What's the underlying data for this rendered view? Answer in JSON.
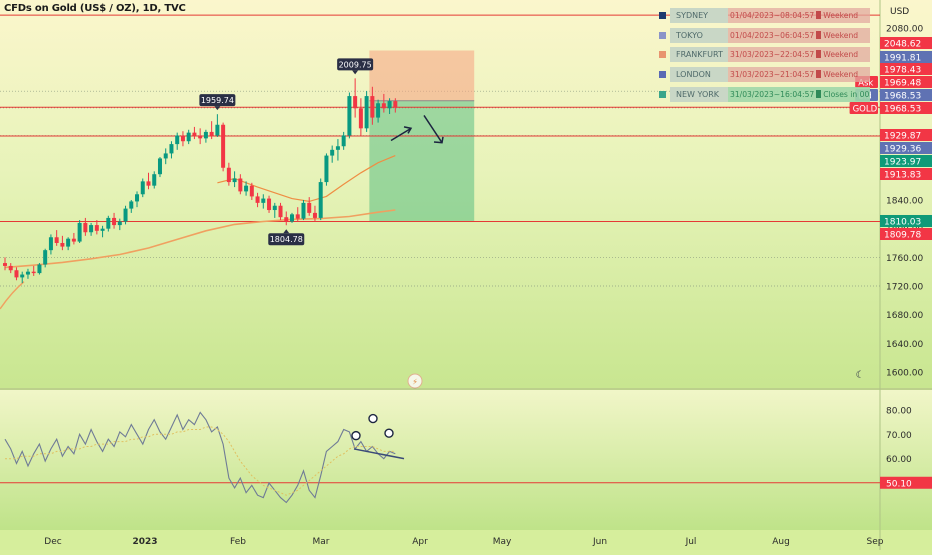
{
  "header": {
    "title": "CFDs on Gold (US$ / OZ), 1D, TVC",
    "currency": "USD"
  },
  "sessions": [
    {
      "name": "SYDNEY",
      "color": "#1f3a6e",
      "info": "01/04/2023~08:04:57",
      "status": "Weekend",
      "open": false
    },
    {
      "name": "TOKYO",
      "color": "#8b94c8",
      "info": "01/04/2023~06:04:57",
      "status": "Weekend",
      "open": false
    },
    {
      "name": "FRANKFURT",
      "color": "#e8946f",
      "info": "31/03/2023~22:04:57",
      "status": "Weekend",
      "open": false
    },
    {
      "name": "LONDON",
      "color": "#5a6ab4",
      "info": "31/03/2023~21:04:57",
      "status": "Weekend",
      "open": false
    },
    {
      "name": "NEW YORK",
      "color": "#3aa58a",
      "info": "31/03/2023~16:04:57",
      "status": "Closes in 00:55",
      "open": true
    }
  ],
  "chart_data": [
    {
      "type": "candlestick",
      "title": "CFDs on Gold (US$ / OZ), 1D, TVC",
      "ylim": [
        1575,
        2100
      ],
      "y_ticks": [
        2080.0,
        1840.0,
        1800.0,
        1760.0,
        1720.0,
        1680.0,
        1640.0,
        1600.0
      ],
      "x_ticks": [
        "Dec",
        "2023",
        "Feb",
        "Mar",
        "Apr",
        "May",
        "Jun",
        "Jul",
        "Aug",
        "Sep"
      ],
      "ohlc": [
        [
          1752,
          1760,
          1742,
          1748
        ],
        [
          1748,
          1752,
          1738,
          1742
        ],
        [
          1742,
          1746,
          1728,
          1732
        ],
        [
          1732,
          1740,
          1724,
          1736
        ],
        [
          1736,
          1744,
          1730,
          1740
        ],
        [
          1740,
          1748,
          1734,
          1738
        ],
        [
          1738,
          1752,
          1736,
          1750
        ],
        [
          1750,
          1772,
          1746,
          1770
        ],
        [
          1770,
          1792,
          1764,
          1788
        ],
        [
          1788,
          1798,
          1776,
          1780
        ],
        [
          1780,
          1790,
          1770,
          1775
        ],
        [
          1775,
          1788,
          1770,
          1786
        ],
        [
          1786,
          1794,
          1778,
          1782
        ],
        [
          1782,
          1812,
          1780,
          1808
        ],
        [
          1808,
          1815,
          1790,
          1795
        ],
        [
          1795,
          1808,
          1790,
          1805
        ],
        [
          1805,
          1812,
          1792,
          1797
        ],
        [
          1797,
          1804,
          1788,
          1800
        ],
        [
          1800,
          1818,
          1796,
          1815
        ],
        [
          1815,
          1822,
          1800,
          1805
        ],
        [
          1805,
          1814,
          1798,
          1810
        ],
        [
          1810,
          1832,
          1806,
          1828
        ],
        [
          1828,
          1840,
          1822,
          1838
        ],
        [
          1838,
          1852,
          1830,
          1848
        ],
        [
          1848,
          1870,
          1844,
          1866
        ],
        [
          1866,
          1878,
          1855,
          1860
        ],
        [
          1860,
          1880,
          1856,
          1876
        ],
        [
          1876,
          1900,
          1872,
          1898
        ],
        [
          1898,
          1912,
          1890,
          1905
        ],
        [
          1905,
          1922,
          1898,
          1918
        ],
        [
          1918,
          1934,
          1910,
          1930
        ],
        [
          1930,
          1936,
          1915,
          1922
        ],
        [
          1922,
          1938,
          1918,
          1934
        ],
        [
          1934,
          1942,
          1925,
          1930
        ],
        [
          1930,
          1940,
          1918,
          1926
        ],
        [
          1926,
          1938,
          1920,
          1935
        ],
        [
          1935,
          1950,
          1925,
          1930
        ],
        [
          1930,
          1959.74,
          1928,
          1945
        ],
        [
          1945,
          1948,
          1880,
          1885
        ],
        [
          1885,
          1892,
          1860,
          1865
        ],
        [
          1865,
          1880,
          1858,
          1870
        ],
        [
          1870,
          1876,
          1848,
          1852
        ],
        [
          1852,
          1866,
          1846,
          1860
        ],
        [
          1860,
          1864,
          1840,
          1845
        ],
        [
          1845,
          1850,
          1830,
          1836
        ],
        [
          1836,
          1848,
          1828,
          1842
        ],
        [
          1842,
          1846,
          1822,
          1826
        ],
        [
          1826,
          1836,
          1815,
          1832
        ],
        [
          1832,
          1836,
          1812,
          1816
        ],
        [
          1816,
          1824,
          1804.78,
          1810
        ],
        [
          1810,
          1822,
          1808,
          1820
        ],
        [
          1820,
          1830,
          1810,
          1814
        ],
        [
          1814,
          1840,
          1812,
          1836
        ],
        [
          1836,
          1844,
          1818,
          1822
        ],
        [
          1822,
          1832,
          1810,
          1815
        ],
        [
          1815,
          1870,
          1812,
          1865
        ],
        [
          1865,
          1905,
          1860,
          1902
        ],
        [
          1902,
          1916,
          1892,
          1910
        ],
        [
          1910,
          1925,
          1895,
          1915
        ],
        [
          1915,
          1935,
          1910,
          1930
        ],
        [
          1930,
          1990,
          1926,
          1985
        ],
        [
          1985,
          2009.75,
          1955,
          1968
        ],
        [
          1968,
          1982,
          1930,
          1940
        ],
        [
          1940,
          1992,
          1935,
          1985
        ],
        [
          1985,
          1998,
          1945,
          1955
        ],
        [
          1955,
          1980,
          1948,
          1975
        ],
        [
          1975,
          1988,
          1962,
          1968
        ],
        [
          1968,
          1982,
          1960,
          1978
        ],
        [
          1978,
          1982,
          1962,
          1969
        ]
      ],
      "ema_fast": [
        [
          37,
          1864
        ],
        [
          40,
          1870
        ],
        [
          44,
          1858
        ],
        [
          47,
          1850
        ],
        [
          50,
          1842
        ],
        [
          53,
          1838
        ],
        [
          56,
          1845
        ],
        [
          59,
          1862
        ],
        [
          62,
          1878
        ],
        [
          65,
          1892
        ],
        [
          68,
          1902
        ]
      ],
      "ema_slow": [
        [
          0,
          1746
        ],
        [
          5,
          1749
        ],
        [
          10,
          1753
        ],
        [
          15,
          1758
        ],
        [
          20,
          1764
        ],
        [
          25,
          1773
        ],
        [
          30,
          1785
        ],
        [
          35,
          1797
        ],
        [
          40,
          1806
        ],
        [
          45,
          1810
        ],
        [
          50,
          1813
        ],
        [
          55,
          1814
        ],
        [
          60,
          1817
        ],
        [
          65,
          1823
        ],
        [
          68,
          1826
        ]
      ],
      "annotations": [
        {
          "label": "1959.74",
          "price": 1959.74,
          "bar": 37
        },
        {
          "label": "1804.78",
          "price": 1804.78,
          "bar": 49
        },
        {
          "label": "2009.75",
          "price": 2009.75,
          "bar": 61
        }
      ],
      "horizontal_lines": [
        {
          "price": 2098.0,
          "color": "#e53935"
        },
        {
          "price": 1969.48,
          "color": "#e53935"
        },
        {
          "price": 1929.36,
          "color": "#e53935"
        },
        {
          "price": 1810.03,
          "color": "#e53935"
        }
      ],
      "dotted_lines": [
        1991.81,
        1968.53,
        1929.87,
        1760.0,
        1720.0
      ],
      "position": {
        "entry": 1978.43,
        "stop": 2048.62,
        "target": 1810.03,
        "start_bar": 64,
        "end_bar": 80
      },
      "price_labels": [
        {
          "text": "2048.62",
          "bg": "#f23645"
        },
        {
          "text": "1991.81",
          "bg": "#5f72b3"
        },
        {
          "text": "1978.43",
          "bg": "#f23645"
        },
        {
          "text": "1969.48",
          "bg": "#f23645",
          "tag": "Ask",
          "tag_bg": "#f23645"
        },
        {
          "text": "1968.53",
          "bg": "#5f72b3",
          "tag": "Bid",
          "tag_bg": "#5f72b3"
        },
        {
          "text": "1968.53",
          "bg": "#f23645",
          "tag": "GOLD",
          "tag_bg": "#f23645"
        },
        {
          "text": "1929.87",
          "bg": "#f23645"
        },
        {
          "text": "1929.36",
          "bg": "#5f72b3"
        },
        {
          "text": "1923.97",
          "bg": "#0f9a78"
        },
        {
          "text": "1913.83",
          "bg": "#f23645"
        },
        {
          "text": "1810.03",
          "bg": "#0f9a78"
        },
        {
          "text": "1809.78",
          "bg": "#f23645"
        }
      ]
    },
    {
      "type": "line",
      "name": "RSI",
      "ylim": [
        42,
        85
      ],
      "y_ticks": [
        80.0,
        70.0,
        60.0,
        50.0
      ],
      "level": {
        "value": 50.1,
        "label": "50.10"
      },
      "values": [
        68,
        64,
        58,
        63,
        57,
        62,
        66,
        59,
        64,
        68,
        61,
        65,
        62,
        70,
        66,
        72,
        67,
        63,
        68,
        65,
        71,
        69,
        74,
        70,
        66,
        72,
        76,
        71,
        68,
        73,
        78,
        72,
        76,
        74,
        79,
        76,
        71,
        73,
        66,
        52,
        48,
        52,
        46,
        49,
        45,
        44,
        50,
        47,
        44,
        42,
        45,
        49,
        55,
        47,
        44,
        53,
        63,
        65,
        67,
        72,
        71,
        64,
        67,
        63,
        65,
        62,
        60,
        63,
        62
      ],
      "signal": [
        60,
        60,
        60,
        61,
        61,
        61,
        62,
        62,
        62,
        63,
        63,
        64,
        64,
        64,
        65,
        65,
        66,
        66,
        66,
        67,
        67,
        67,
        68,
        68,
        69,
        69,
        70,
        70,
        70,
        70,
        71,
        71,
        72,
        72,
        72,
        73,
        73,
        72,
        70,
        67,
        63,
        59,
        56,
        53,
        51,
        49,
        48,
        47,
        46,
        45,
        46,
        47,
        49,
        51,
        53,
        55,
        57,
        59,
        61,
        62,
        64,
        65,
        65,
        65,
        65,
        64,
        63,
        63,
        63
      ]
    }
  ]
}
